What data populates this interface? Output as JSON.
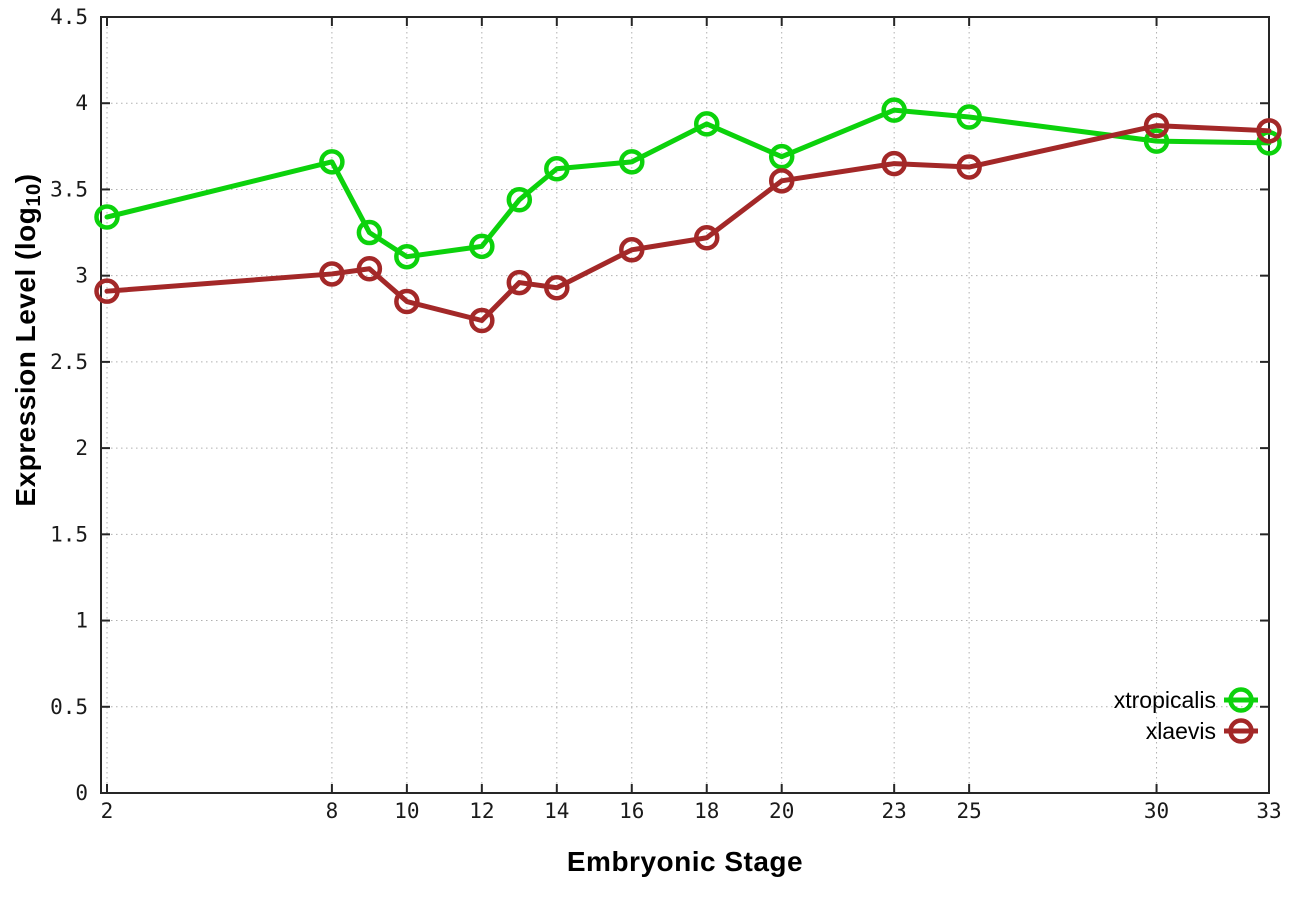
{
  "figure": {
    "background": "#ffffff",
    "xlabel": "Embryonic Stage",
    "ylabel": {
      "prefix": "Expression Level (log",
      "sub": "10",
      "suffix": ")"
    }
  },
  "style": {
    "axis_color": "#262626",
    "tick_label_color": "#1a1a1a",
    "grid_color": "#b0b0b0",
    "legend_text_color": "#000000"
  },
  "chart_data": {
    "type": "line",
    "title": "",
    "xlabel": "Embryonic Stage",
    "ylabel": "Expression Level (log10)",
    "xlim": [
      2,
      33
    ],
    "ylim": [
      0,
      4.5
    ],
    "grid": true,
    "legend_position": "bottom-right",
    "x_ticks": [
      2,
      8,
      10,
      12,
      14,
      16,
      18,
      20,
      23,
      25,
      30,
      33
    ],
    "x_tick_labels": [
      "2",
      "8",
      "10",
      "12",
      "14",
      "16",
      "18",
      "20",
      "23",
      "25",
      "30",
      "33"
    ],
    "y_ticks": [
      0,
      0.5,
      1,
      1.5,
      2,
      2.5,
      3,
      3.5,
      4,
      4.5
    ],
    "y_tick_labels": [
      "0",
      "0.5",
      "1",
      "1.5",
      "2",
      "2.5",
      "3",
      "3.5",
      "4",
      "4.5"
    ],
    "x": [
      2,
      8,
      9,
      10,
      12,
      13,
      14,
      16,
      18,
      20,
      23,
      25,
      30,
      33
    ],
    "series": [
      {
        "name": "xtropicalis",
        "color": "#0cd20c",
        "marker": "open-circle",
        "values": [
          3.34,
          3.66,
          3.25,
          3.11,
          3.17,
          3.44,
          3.62,
          3.66,
          3.88,
          3.69,
          3.96,
          3.92,
          3.78,
          3.77
        ]
      },
      {
        "name": "xlaevis",
        "color": "#a32828",
        "marker": "open-circle",
        "values": [
          2.91,
          3.01,
          3.04,
          2.85,
          2.74,
          2.96,
          2.93,
          3.15,
          3.22,
          3.55,
          3.65,
          3.63,
          3.87,
          3.84
        ]
      }
    ]
  }
}
